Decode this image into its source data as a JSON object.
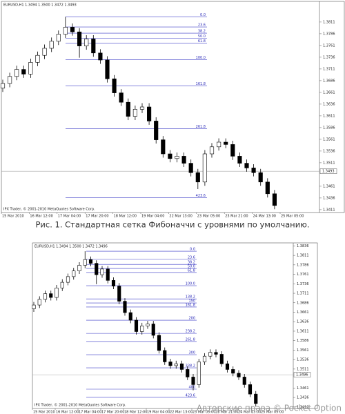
{
  "chart_data": [
    {
      "type": "candlestick",
      "header": "EURUSD,H1  1.3494 1.3500 1.3472 1.3493",
      "footer": "IPX Trader, © 2001-2010 MetaQuotes Software Corp.",
      "categories": [
        "15 Mar 2010",
        "16 Mar 12:00",
        "17 Mar 04:00",
        "17 Mar 20:00",
        "18 Mar 12:00",
        "19 Mar 04:00",
        "22 Mar 13:00",
        "23 Mar 05:00",
        "23 Mar 21:00",
        "24 Mar 13:00",
        "25 Mar 05:00"
      ],
      "open": [
        1.367,
        1.368,
        1.3695,
        1.371,
        1.37,
        1.3725,
        1.374,
        1.3755,
        1.377,
        1.3785,
        1.38,
        1.379,
        1.376,
        1.3775,
        1.3745,
        1.373,
        1.369,
        1.366,
        1.364,
        1.361,
        1.3625,
        1.363,
        1.36,
        1.356,
        1.353,
        1.352,
        1.3525,
        1.351,
        1.349,
        1.347,
        1.353,
        1.3545,
        1.3555,
        1.355,
        1.3525,
        1.351,
        1.35,
        1.349,
        1.347,
        1.3445
      ],
      "high": [
        1.3688,
        1.3703,
        1.3718,
        1.3718,
        1.3733,
        1.3748,
        1.3763,
        1.3778,
        1.3793,
        1.3822,
        1.3808,
        1.3798,
        1.3783,
        1.3783,
        1.3753,
        1.3738,
        1.3698,
        1.3668,
        1.3648,
        1.3633,
        1.3638,
        1.3638,
        1.3608,
        1.3568,
        1.3538,
        1.3533,
        1.3533,
        1.3518,
        1.3498,
        1.3538,
        1.3553,
        1.3563,
        1.3563,
        1.3558,
        1.3533,
        1.3518,
        1.3508,
        1.3498,
        1.3478,
        1.3453
      ],
      "low": [
        1.3662,
        1.3672,
        1.3687,
        1.3692,
        1.3692,
        1.3717,
        1.3732,
        1.3747,
        1.3762,
        1.3777,
        1.3782,
        1.3735,
        1.3752,
        1.3737,
        1.3722,
        1.3682,
        1.3652,
        1.3632,
        1.3602,
        1.3602,
        1.3617,
        1.3592,
        1.3552,
        1.3522,
        1.3512,
        1.3512,
        1.3502,
        1.3482,
        1.3455,
        1.3462,
        1.3522,
        1.3537,
        1.3542,
        1.3517,
        1.3502,
        1.3492,
        1.3482,
        1.3462,
        1.3437,
        1.3412
      ],
      "close": [
        1.368,
        1.3695,
        1.371,
        1.37,
        1.3725,
        1.374,
        1.3755,
        1.377,
        1.3785,
        1.38,
        1.379,
        1.376,
        1.3775,
        1.3745,
        1.373,
        1.369,
        1.366,
        1.364,
        1.361,
        1.3625,
        1.363,
        1.36,
        1.356,
        1.353,
        1.352,
        1.3525,
        1.351,
        1.349,
        1.347,
        1.353,
        1.3545,
        1.3555,
        1.355,
        1.3525,
        1.351,
        1.35,
        1.349,
        1.347,
        1.3445,
        1.342
      ],
      "ylim": [
        1.3405,
        1.3855
      ],
      "yticks": [
        1.3811,
        1.3786,
        1.3761,
        1.3736,
        1.3711,
        1.3686,
        1.3661,
        1.3636,
        1.3611,
        1.3586,
        1.3561,
        1.3536,
        1.3511,
        1.3461,
        1.3436,
        1.3411
      ],
      "last_price": 1.3493,
      "fib": {
        "start": 1.3822,
        "end": 1.3731,
        "levels": [
          {
            "value": 0,
            "label": "0.0"
          },
          23.6,
          38.2,
          {
            "value": 50,
            "label": "50.0"
          },
          61.8,
          {
            "value": 100,
            "label": "100.0"
          },
          161.8,
          261.8,
          423.6
        ]
      }
    },
    {
      "type": "candlestick",
      "header": "EURUSD,H1  1.3494 1.3500 1.3472 1.3496",
      "footer": "IPX Trader, © 2001-2010 MetaQuotes Software Corp.",
      "categories": [
        "15 Mar 2010",
        "16 Mar 12:00",
        "17 Mar 04:00",
        "17 Mar 20:00",
        "18 Mar 12:00",
        "19 Mar 04:00",
        "22 Mar 13:00",
        "23 Mar 05:00",
        "23 Mar 21:00",
        "24 Mar 13:00",
        "25 Mar 05:00"
      ],
      "open": [
        1.367,
        1.368,
        1.3695,
        1.371,
        1.37,
        1.3725,
        1.374,
        1.3755,
        1.377,
        1.3785,
        1.38,
        1.379,
        1.376,
        1.3775,
        1.3745,
        1.373,
        1.369,
        1.366,
        1.364,
        1.361,
        1.3625,
        1.363,
        1.36,
        1.356,
        1.353,
        1.352,
        1.3525,
        1.351,
        1.349,
        1.347,
        1.353,
        1.3545,
        1.3555,
        1.355,
        1.3525,
        1.351,
        1.35,
        1.349,
        1.347,
        1.3445
      ],
      "high": [
        1.3688,
        1.3703,
        1.3718,
        1.3718,
        1.3733,
        1.3748,
        1.3763,
        1.3778,
        1.3793,
        1.3822,
        1.3808,
        1.3798,
        1.3783,
        1.3783,
        1.3753,
        1.3738,
        1.3698,
        1.3668,
        1.3648,
        1.3633,
        1.3638,
        1.3638,
        1.3608,
        1.3568,
        1.3538,
        1.3533,
        1.3533,
        1.3518,
        1.3498,
        1.3538,
        1.3553,
        1.3563,
        1.3563,
        1.3558,
        1.3533,
        1.3518,
        1.3508,
        1.3498,
        1.3478,
        1.3453
      ],
      "low": [
        1.3662,
        1.3672,
        1.3687,
        1.3692,
        1.3692,
        1.3717,
        1.3732,
        1.3747,
        1.3762,
        1.3777,
        1.3782,
        1.3735,
        1.3752,
        1.3737,
        1.3722,
        1.3682,
        1.3652,
        1.3632,
        1.3602,
        1.3602,
        1.3617,
        1.3592,
        1.3552,
        1.3522,
        1.3512,
        1.3512,
        1.3502,
        1.3482,
        1.3455,
        1.3462,
        1.3522,
        1.3537,
        1.3542,
        1.3517,
        1.3502,
        1.3492,
        1.3482,
        1.3462,
        1.3437,
        1.3412
      ],
      "close": [
        1.368,
        1.3695,
        1.371,
        1.37,
        1.3725,
        1.374,
        1.3755,
        1.377,
        1.3785,
        1.38,
        1.379,
        1.376,
        1.3775,
        1.3745,
        1.373,
        1.369,
        1.366,
        1.364,
        1.361,
        1.3625,
        1.363,
        1.36,
        1.356,
        1.353,
        1.352,
        1.3525,
        1.351,
        1.349,
        1.347,
        1.353,
        1.3545,
        1.3555,
        1.355,
        1.3525,
        1.351,
        1.35,
        1.349,
        1.347,
        1.3445,
        1.342
      ],
      "ylim": [
        1.3407,
        1.3844
      ],
      "yticks": [
        1.3836,
        1.3811,
        1.3786,
        1.3761,
        1.3736,
        1.3711,
        1.3686,
        1.3661,
        1.3636,
        1.3611,
        1.3586,
        1.3561,
        1.3536,
        1.3511,
        1.3461,
        1.3436,
        1.3411
      ],
      "last_price": 1.3496,
      "fib": {
        "start": 1.3822,
        "end": 1.3731,
        "levels": [
          {
            "value": 0,
            "label": "0.0"
          },
          23.6,
          38.2,
          {
            "value": 50,
            "label": "50.0"
          },
          61.8,
          {
            "value": 100,
            "label": "100.0"
          },
          138.2,
          150,
          161.8,
          200,
          238.2,
          261.8,
          300,
          338.2,
          400,
          423.6
        ]
      }
    }
  ],
  "caption": "Рис. 1. Стандартная сетка Фибоначчи с уровнями по умолчанию.",
  "watermark": "Авторские права © Pocket Option"
}
